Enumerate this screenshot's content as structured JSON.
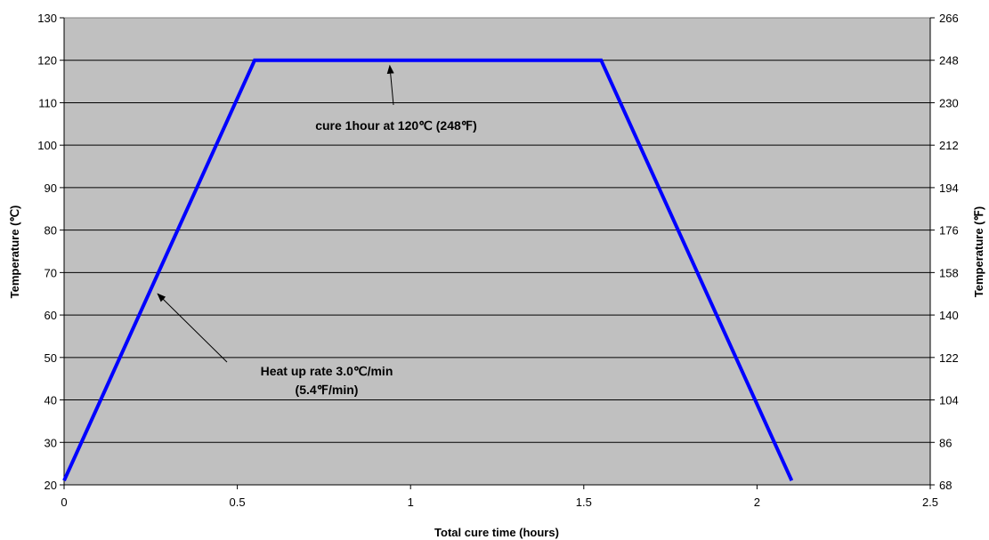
{
  "chart_data": {
    "type": "line",
    "xlabel": "Total cure time (hours)",
    "ylabel": "Temperature (℃)",
    "y2label": "Temperature (℉)",
    "xlim": [
      0,
      2.5
    ],
    "ylim": [
      20,
      130
    ],
    "y2lim": [
      68,
      266
    ],
    "grid": "horizontal",
    "x_ticks": [
      "0",
      "0.5",
      "1",
      "1.5",
      "2",
      "2.5"
    ],
    "y_ticks": [
      "20",
      "30",
      "40",
      "50",
      "60",
      "70",
      "80",
      "90",
      "100",
      "110",
      "120",
      "130"
    ],
    "y2_ticks": [
      "68",
      "86",
      "104",
      "122",
      "140",
      "158",
      "176",
      "194",
      "212",
      "230",
      "248",
      "266"
    ],
    "colors": {
      "plot_background": "#c0c0c0",
      "series": "#0000ff"
    },
    "series": [
      {
        "x": [
          0,
          0.55,
          1.55,
          2.1
        ],
        "y": [
          21,
          120,
          120,
          21
        ]
      }
    ],
    "annotations": [
      {
        "lines": [
          "cure 1hour at 120℃ (248℉)"
        ],
        "arrow_to": {
          "x": 0.94,
          "y": 120
        }
      },
      {
        "lines": [
          "Heat up rate 3.0℃/min",
          "(5.4℉/min)"
        ],
        "arrow_to": {
          "x": 0.27,
          "y": 65
        }
      }
    ]
  }
}
